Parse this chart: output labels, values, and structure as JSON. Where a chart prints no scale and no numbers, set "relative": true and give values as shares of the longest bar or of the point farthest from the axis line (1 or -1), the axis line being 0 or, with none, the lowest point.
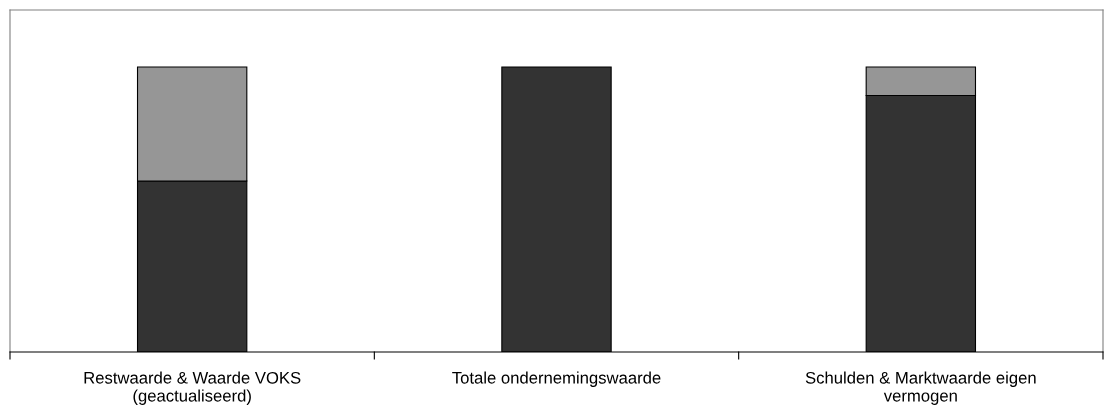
{
  "chart_data": {
    "type": "bar",
    "stacked": true,
    "relative": true,
    "categories": [
      "Restwaarde & Waarde VOKS\n(geactualiseerd)",
      "Totale ondernemingswaarde",
      "Schulden & Marktwaarde eigen\nvermogen"
    ],
    "series": [
      {
        "color": "#333333",
        "values": [
          0.6,
          1.0,
          0.9
        ]
      },
      {
        "color": "#969696",
        "values": [
          0.4,
          null,
          0.1
        ]
      }
    ],
    "grid": false
  }
}
